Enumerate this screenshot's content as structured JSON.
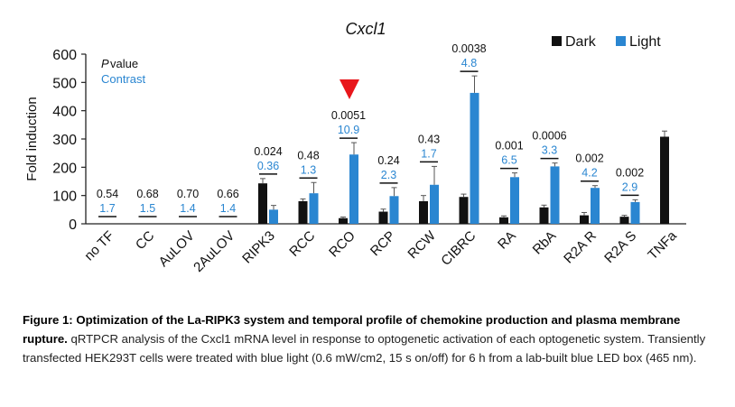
{
  "chart_data": {
    "type": "bar",
    "title": "Cxcl1",
    "ylabel": "Fold induction",
    "ylim": [
      0,
      600
    ],
    "yticks": [
      0,
      100,
      200,
      300,
      400,
      500,
      600
    ],
    "categories": [
      "no TF",
      "CC",
      "AuLOV",
      "2AuLOV",
      "RIPK3",
      "RCC",
      "RCO",
      "RCP",
      "RCW",
      "CIBRC",
      "RA",
      "RbA",
      "R2A R",
      "R2A S",
      "TNFa"
    ],
    "series": [
      {
        "name": "Dark",
        "color": "#111111",
        "values": [
          0,
          0,
          0,
          0,
          143,
          80,
          20,
          43,
          80,
          95,
          23,
          58,
          30,
          25,
          308
        ],
        "errors": [
          0,
          0,
          0,
          0,
          17,
          8,
          4,
          9,
          20,
          10,
          5,
          8,
          10,
          5,
          20
        ]
      },
      {
        "name": "Light",
        "color": "#2a86d1",
        "values": [
          0,
          0,
          0,
          0,
          50,
          108,
          245,
          98,
          138,
          463,
          165,
          203,
          127,
          77,
          0
        ],
        "errors": [
          0,
          0,
          0,
          0,
          15,
          38,
          42,
          30,
          65,
          60,
          15,
          12,
          8,
          8,
          0
        ]
      }
    ],
    "annotations": {
      "p_values": [
        "0.54",
        "0.68",
        "0.70",
        "0.66",
        "0.024",
        "0.48",
        "0.0051",
        "0.24",
        "0.43",
        "0.0038",
        "0.001",
        "0.0006",
        "0.002",
        "0.002",
        ""
      ],
      "contrast": [
        "1.7",
        "1.5",
        "1.4",
        "1.4",
        "0.36",
        "1.3",
        "10.9",
        "2.3",
        "1.7",
        "4.8",
        "6.5",
        "3.3",
        "4.2",
        "2.9",
        ""
      ],
      "p_legend": "P value",
      "contrast_legend": "Contrast",
      "highlight_category": "RCO",
      "highlight_color": "#e8161b"
    },
    "legend_position": "top-right",
    "grid": false
  },
  "caption": {
    "bold": "Figure 1: Optimization of the La-RIPK3 system and temporal profile of chemokine production and plasma membrane rupture.",
    "text": " qRTPCR analysis of the Cxcl1 mRNA level in response to optogenetic activation of each optogenetic system. Transiently transfected HEK293T cells were treated with blue light (0.6 mW/cm2, 15 s on/off) for 6 h from a lab-built blue LED box (465 nm)."
  }
}
